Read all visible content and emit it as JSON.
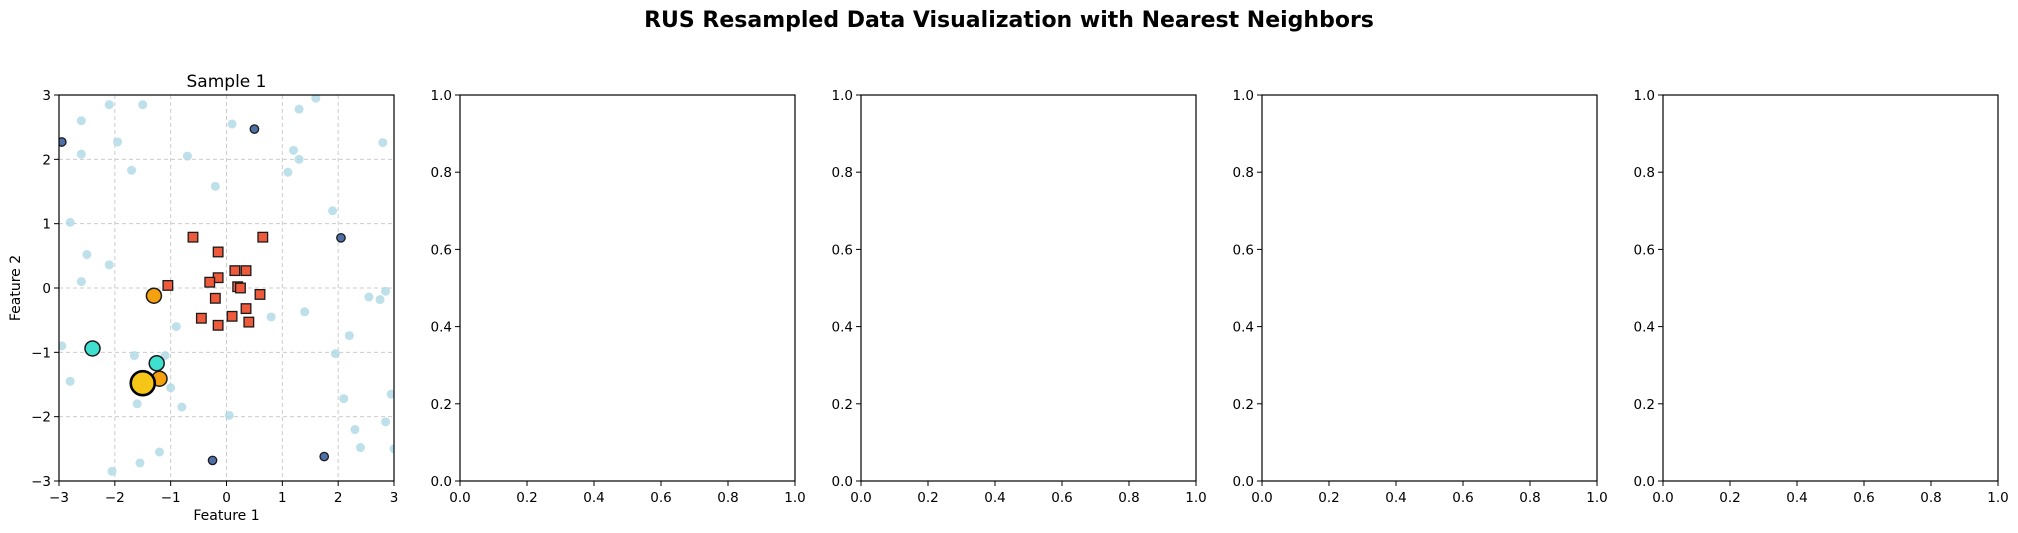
{
  "figure": {
    "title": "RUS Resampled Data Visualization with Nearest Neighbors"
  },
  "colors": {
    "background_points": "#add8e6",
    "majority_points": "#4f6fa8",
    "minority_points": "#ee5a3c",
    "neighbor_points": "#f5a00f",
    "highlight_neighbors": "#40e0d0",
    "selected_point": "#f5c518",
    "grid": "#cccccc"
  },
  "chart_data": [
    {
      "type": "scatter",
      "title": "Sample 1",
      "xlabel": "Feature 1",
      "ylabel": "Feature 2",
      "xlim": [
        -3,
        3
      ],
      "ylim": [
        -3,
        3
      ],
      "xticks": [
        "−3",
        "−2",
        "−1",
        "0",
        "1",
        "2",
        "3"
      ],
      "yticks": [
        "−3",
        "−2",
        "−1",
        "0",
        "1",
        "2",
        "3"
      ],
      "grid": true,
      "series": [
        {
          "role": "background",
          "marker": "circle",
          "color": "#add8e6",
          "points": [
            [
              -2.1,
              2.85
            ],
            [
              -1.5,
              2.85
            ],
            [
              -2.6,
              2.6
            ],
            [
              -2.6,
              2.08
            ],
            [
              -1.95,
              2.27
            ],
            [
              -1.7,
              1.83
            ],
            [
              -0.7,
              2.05
            ],
            [
              -0.2,
              1.58
            ],
            [
              0.1,
              2.55
            ],
            [
              1.3,
              2.78
            ],
            [
              1.6,
              2.95
            ],
            [
              1.2,
              2.14
            ],
            [
              1.3,
              2.0
            ],
            [
              1.1,
              1.8
            ],
            [
              2.8,
              2.26
            ],
            [
              1.9,
              1.2
            ],
            [
              -2.8,
              1.02
            ],
            [
              -2.5,
              0.52
            ],
            [
              -2.1,
              0.36
            ],
            [
              -2.6,
              0.1
            ],
            [
              -0.9,
              -0.6
            ],
            [
              0.8,
              -0.45
            ],
            [
              1.4,
              -0.37
            ],
            [
              2.2,
              -0.74
            ],
            [
              2.55,
              -0.14
            ],
            [
              2.75,
              -0.18
            ],
            [
              2.85,
              -0.05
            ],
            [
              -1.65,
              -1.05
            ],
            [
              -1.1,
              -1.05
            ],
            [
              -2.95,
              -0.9
            ],
            [
              -2.8,
              -1.45
            ],
            [
              -1.6,
              -1.8
            ],
            [
              -1.0,
              -1.55
            ],
            [
              -0.8,
              -1.85
            ],
            [
              0.05,
              -1.98
            ],
            [
              1.95,
              -1.02
            ],
            [
              2.1,
              -1.72
            ],
            [
              2.95,
              -1.65
            ],
            [
              2.3,
              -2.2
            ],
            [
              2.85,
              -2.08
            ],
            [
              2.4,
              -2.48
            ],
            [
              3.0,
              -2.5
            ],
            [
              -1.2,
              -2.55
            ],
            [
              -1.55,
              -2.72
            ],
            [
              -2.05,
              -2.85
            ]
          ]
        },
        {
          "role": "majority",
          "marker": "circle",
          "color": "#4f6fa8",
          "points": [
            [
              -2.95,
              2.27
            ],
            [
              0.5,
              2.47
            ],
            [
              2.05,
              0.78
            ],
            [
              -0.25,
              -2.68
            ],
            [
              1.75,
              -2.62
            ]
          ]
        },
        {
          "role": "minority",
          "marker": "square",
          "color": "#ee5a3c",
          "points": [
            [
              -0.6,
              0.79
            ],
            [
              0.65,
              0.79
            ],
            [
              -0.15,
              0.56
            ],
            [
              0.15,
              0.27
            ],
            [
              0.35,
              0.27
            ],
            [
              -0.15,
              0.16
            ],
            [
              -0.3,
              0.09
            ],
            [
              0.2,
              0.02
            ],
            [
              0.25,
              0.0
            ],
            [
              -1.05,
              0.04
            ],
            [
              0.6,
              -0.1
            ],
            [
              -0.2,
              -0.16
            ],
            [
              0.35,
              -0.32
            ],
            [
              -0.45,
              -0.47
            ],
            [
              0.1,
              -0.44
            ],
            [
              0.4,
              -0.53
            ],
            [
              -0.15,
              -0.58
            ]
          ]
        },
        {
          "role": "neighbors",
          "marker": "circle",
          "color": "#f5a00f",
          "points": [
            [
              -1.3,
              -0.12
            ],
            [
              -1.2,
              -1.41
            ],
            [
              -1.55,
              -1.44
            ]
          ]
        },
        {
          "role": "highlight",
          "marker": "circle",
          "color": "#40e0d0",
          "points": [
            [
              -2.4,
              -0.94
            ],
            [
              -1.25,
              -1.17
            ]
          ]
        },
        {
          "role": "selected",
          "marker": "circle",
          "color": "#f5c518",
          "points": [
            [
              -1.5,
              -1.48
            ]
          ]
        }
      ]
    },
    {
      "type": "scatter",
      "title": "",
      "xlim": [
        0,
        1
      ],
      "ylim": [
        0,
        1
      ],
      "xticks": [
        "0.0",
        "0.2",
        "0.4",
        "0.6",
        "0.8",
        "1.0"
      ],
      "yticks": [
        "0.0",
        "0.2",
        "0.4",
        "0.6",
        "0.8",
        "1.0"
      ],
      "series": []
    },
    {
      "type": "scatter",
      "title": "",
      "xlim": [
        0,
        1
      ],
      "ylim": [
        0,
        1
      ],
      "xticks": [
        "0.0",
        "0.2",
        "0.4",
        "0.6",
        "0.8",
        "1.0"
      ],
      "yticks": [
        "0.0",
        "0.2",
        "0.4",
        "0.6",
        "0.8",
        "1.0"
      ],
      "series": []
    },
    {
      "type": "scatter",
      "title": "",
      "xlim": [
        0,
        1
      ],
      "ylim": [
        0,
        1
      ],
      "xticks": [
        "0.0",
        "0.2",
        "0.4",
        "0.6",
        "0.8",
        "1.0"
      ],
      "yticks": [
        "0.0",
        "0.2",
        "0.4",
        "0.6",
        "0.8",
        "1.0"
      ],
      "series": []
    },
    {
      "type": "scatter",
      "title": "",
      "xlim": [
        0,
        1
      ],
      "ylim": [
        0,
        1
      ],
      "xticks": [
        "0.0",
        "0.2",
        "0.4",
        "0.6",
        "0.8",
        "1.0"
      ],
      "yticks": [
        "0.0",
        "0.2",
        "0.4",
        "0.6",
        "0.8",
        "1.0"
      ],
      "series": []
    }
  ]
}
